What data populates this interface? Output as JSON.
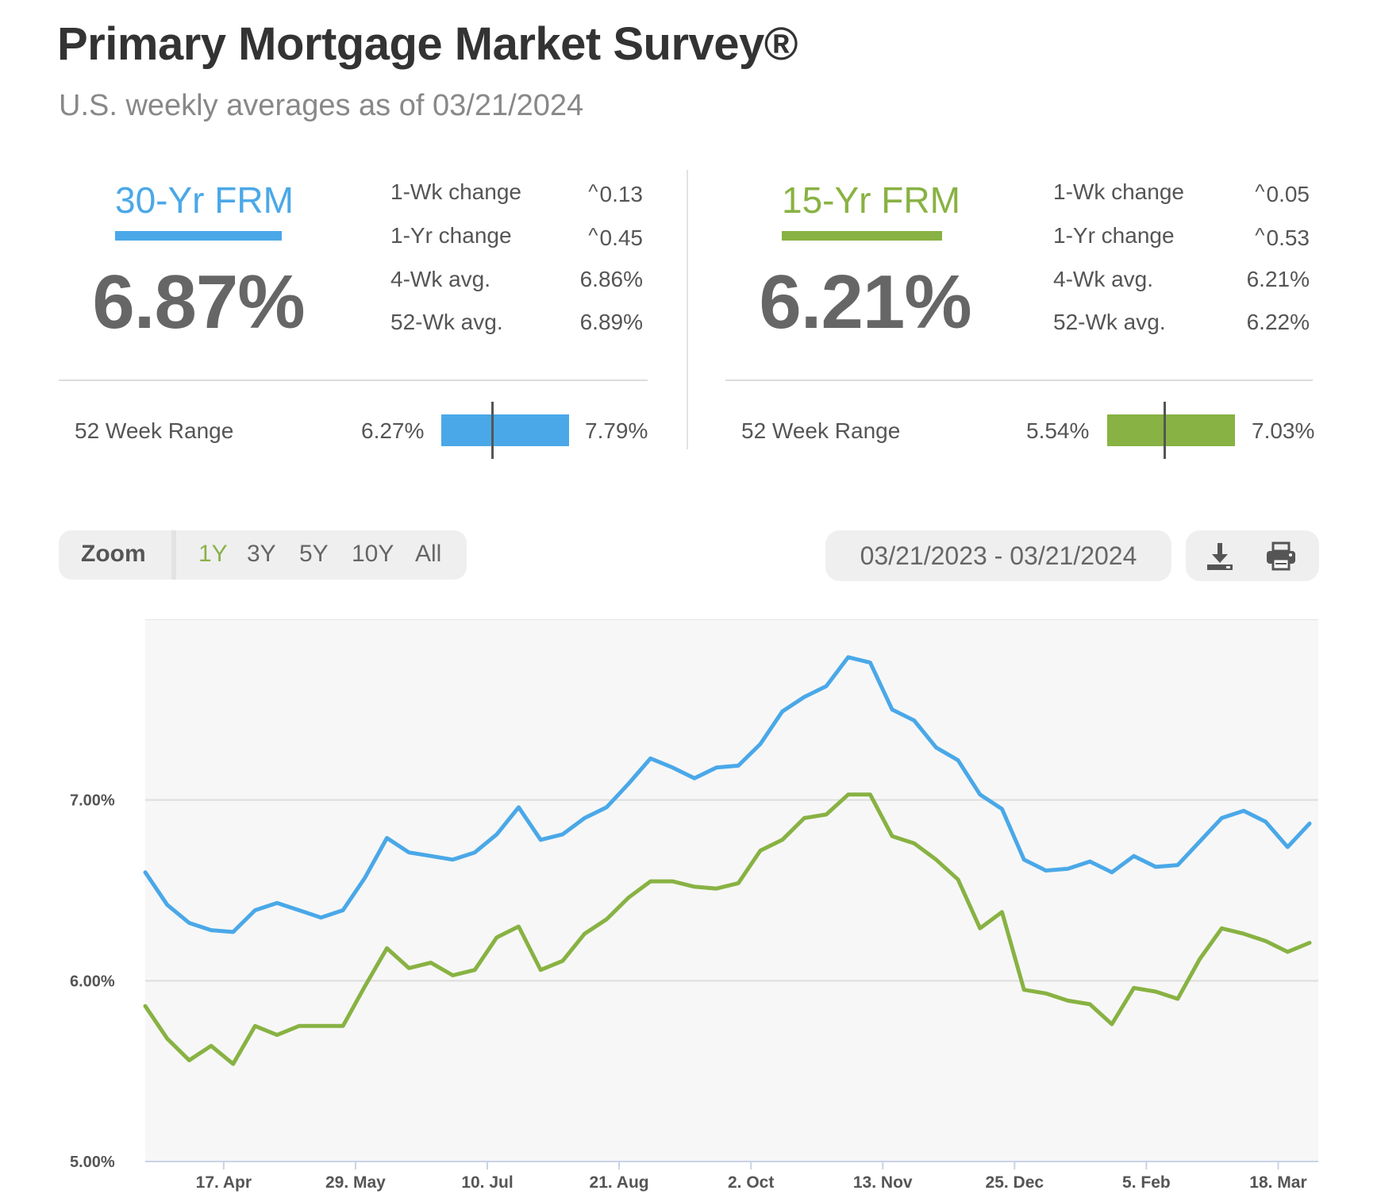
{
  "header": {
    "title": "Primary Mortgage Market Survey®",
    "subtitle": "U.S. weekly averages as of 03/21/2024"
  },
  "products": [
    {
      "name": "30-Yr FRM",
      "color": "#4aa8e8",
      "rate": "6.87%",
      "stats": [
        {
          "label": "1-Wk change",
          "value": "0.13",
          "arrow": "^"
        },
        {
          "label": "1-Yr change",
          "value": "0.45",
          "arrow": "^"
        },
        {
          "label": "4-Wk avg.",
          "value": "6.86%",
          "arrow": ""
        },
        {
          "label": "52-Wk avg.",
          "value": "6.89%",
          "arrow": ""
        }
      ],
      "range": {
        "label": "52 Week Range",
        "low": "6.27%",
        "high": "7.79%",
        "low_value": 6.27,
        "high_value": 7.79,
        "current_value": 6.87
      }
    },
    {
      "name": "15-Yr FRM",
      "color": "#88b243",
      "rate": "6.21%",
      "stats": [
        {
          "label": "1-Wk change",
          "value": "0.05",
          "arrow": "^"
        },
        {
          "label": "1-Yr change",
          "value": "0.53",
          "arrow": "^"
        },
        {
          "label": "4-Wk avg.",
          "value": "6.21%",
          "arrow": ""
        },
        {
          "label": "52-Wk avg.",
          "value": "6.22%",
          "arrow": ""
        }
      ],
      "range": {
        "label": "52 Week Range",
        "low": "5.54%",
        "high": "7.03%",
        "low_value": 5.54,
        "high_value": 7.03,
        "current_value": 6.21
      }
    }
  ],
  "controls": {
    "zoom_label": "Zoom",
    "zoom_options": [
      "1Y",
      "3Y",
      "5Y",
      "10Y",
      "All"
    ],
    "zoom_selected": "1Y",
    "date_range": "03/21/2023 - 03/21/2024",
    "download_icon": "download-icon",
    "print_icon": "print-icon"
  },
  "chart_data": {
    "type": "line",
    "x_start": "2023-03-23",
    "x_step_days": 7,
    "ylim": [
      5.0,
      8.0
    ],
    "y_ticks": [
      5.0,
      6.0,
      7.0
    ],
    "y_tick_labels": [
      "5.00%",
      "6.00%",
      "7.00%"
    ],
    "x_tick_labels": [
      "17. Apr",
      "29. May",
      "10. Jul",
      "21. Aug",
      "2. Oct",
      "13. Nov",
      "25. Dec",
      "5. Feb",
      "18. Mar"
    ],
    "x_tick_dates": [
      "2023-04-17",
      "2023-05-29",
      "2023-07-10",
      "2023-08-21",
      "2023-10-02",
      "2023-11-13",
      "2023-12-25",
      "2024-02-05",
      "2024-03-18"
    ],
    "grid": true,
    "series": [
      {
        "name": "30-Yr FRM",
        "color": "#4aa8e8",
        "values": [
          6.6,
          6.42,
          6.32,
          6.28,
          6.27,
          6.39,
          6.43,
          6.39,
          6.35,
          6.39,
          6.57,
          6.79,
          6.71,
          6.69,
          6.67,
          6.71,
          6.81,
          6.96,
          6.78,
          6.81,
          6.9,
          6.96,
          7.09,
          7.23,
          7.18,
          7.12,
          7.18,
          7.19,
          7.31,
          7.49,
          7.57,
          7.63,
          7.79,
          7.76,
          7.5,
          7.44,
          7.29,
          7.22,
          7.03,
          6.95,
          6.67,
          6.61,
          6.62,
          6.66,
          6.6,
          6.69,
          6.63,
          6.64,
          6.77,
          6.9,
          6.94,
          6.88,
          6.74,
          6.87
        ]
      },
      {
        "name": "15-Yr FRM",
        "color": "#88b243",
        "values": [
          5.86,
          5.68,
          5.56,
          5.64,
          5.54,
          5.75,
          5.7,
          5.75,
          5.75,
          5.75,
          5.97,
          6.18,
          6.07,
          6.1,
          6.03,
          6.06,
          6.24,
          6.3,
          6.06,
          6.11,
          6.26,
          6.34,
          6.46,
          6.55,
          6.55,
          6.52,
          6.51,
          6.54,
          6.72,
          6.78,
          6.9,
          6.92,
          7.03,
          7.03,
          6.8,
          6.76,
          6.67,
          6.56,
          6.29,
          6.38,
          5.95,
          5.93,
          5.89,
          5.87,
          5.76,
          5.96,
          5.94,
          5.9,
          6.12,
          6.29,
          6.26,
          6.22,
          6.16,
          6.21
        ]
      }
    ]
  }
}
